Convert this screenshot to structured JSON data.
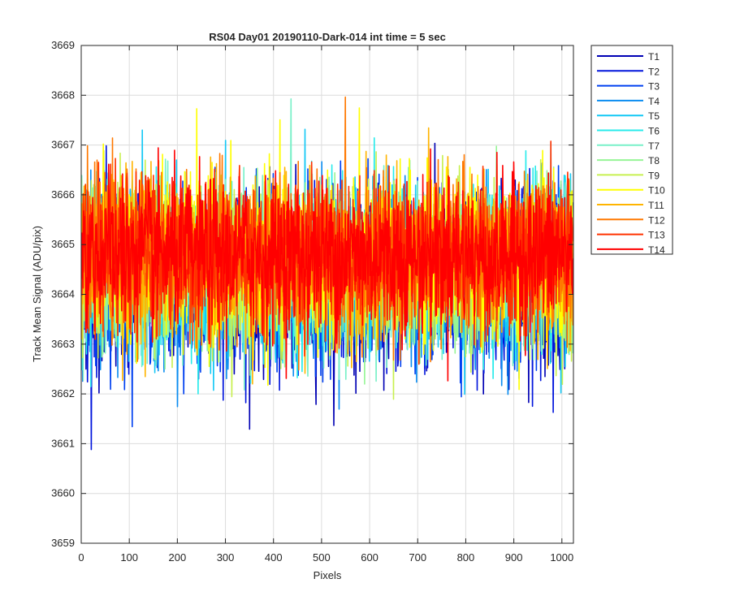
{
  "chart_data": {
    "type": "line",
    "title": "RS04 Day01 20190110-Dark-014 int time = 5 sec",
    "xlabel": "Pixels",
    "ylabel": "Track Mean Signal (ADU/pix)",
    "xlim": [
      0,
      1024
    ],
    "ylim": [
      3659,
      3669
    ],
    "xticks": [
      0,
      100,
      200,
      300,
      400,
      500,
      600,
      700,
      800,
      900,
      1000
    ],
    "yticks": [
      3659,
      3660,
      3661,
      3662,
      3663,
      3664,
      3665,
      3666,
      3667,
      3668,
      3669
    ],
    "grid": true,
    "legend_position": "outside-top-right",
    "n_points_per_series": 1024,
    "series": [
      {
        "name": "T1",
        "color": "#0000b4",
        "mean": 3664.25,
        "noise_sd": 0.85
      },
      {
        "name": "T2",
        "color": "#0014dc",
        "mean": 3664.3,
        "noise_sd": 0.85
      },
      {
        "name": "T3",
        "color": "#0040f0",
        "mean": 3664.35,
        "noise_sd": 0.8
      },
      {
        "name": "T4",
        "color": "#0a8cf0",
        "mean": 3664.4,
        "noise_sd": 0.8
      },
      {
        "name": "T5",
        "color": "#14c8f5",
        "mean": 3664.45,
        "noise_sd": 0.8
      },
      {
        "name": "T6",
        "color": "#28ebeb",
        "mean": 3664.5,
        "noise_sd": 0.8
      },
      {
        "name": "T7",
        "color": "#78f0c8",
        "mean": 3664.5,
        "noise_sd": 0.8
      },
      {
        "name": "T8",
        "color": "#96f596",
        "mean": 3664.55,
        "noise_sd": 0.8
      },
      {
        "name": "T9",
        "color": "#c8f050",
        "mean": 3664.6,
        "noise_sd": 0.8
      },
      {
        "name": "T10",
        "color": "#ffff00",
        "mean": 3664.7,
        "noise_sd": 0.85
      },
      {
        "name": "T11",
        "color": "#ffb400",
        "mean": 3664.7,
        "noise_sd": 0.8
      },
      {
        "name": "T12",
        "color": "#ff7800",
        "mean": 3664.75,
        "noise_sd": 0.75
      },
      {
        "name": "T13",
        "color": "#ff3200",
        "mean": 3664.8,
        "noise_sd": 0.75
      },
      {
        "name": "T14",
        "color": "#ff0000",
        "mean": 3664.8,
        "noise_sd": 0.75
      }
    ]
  }
}
